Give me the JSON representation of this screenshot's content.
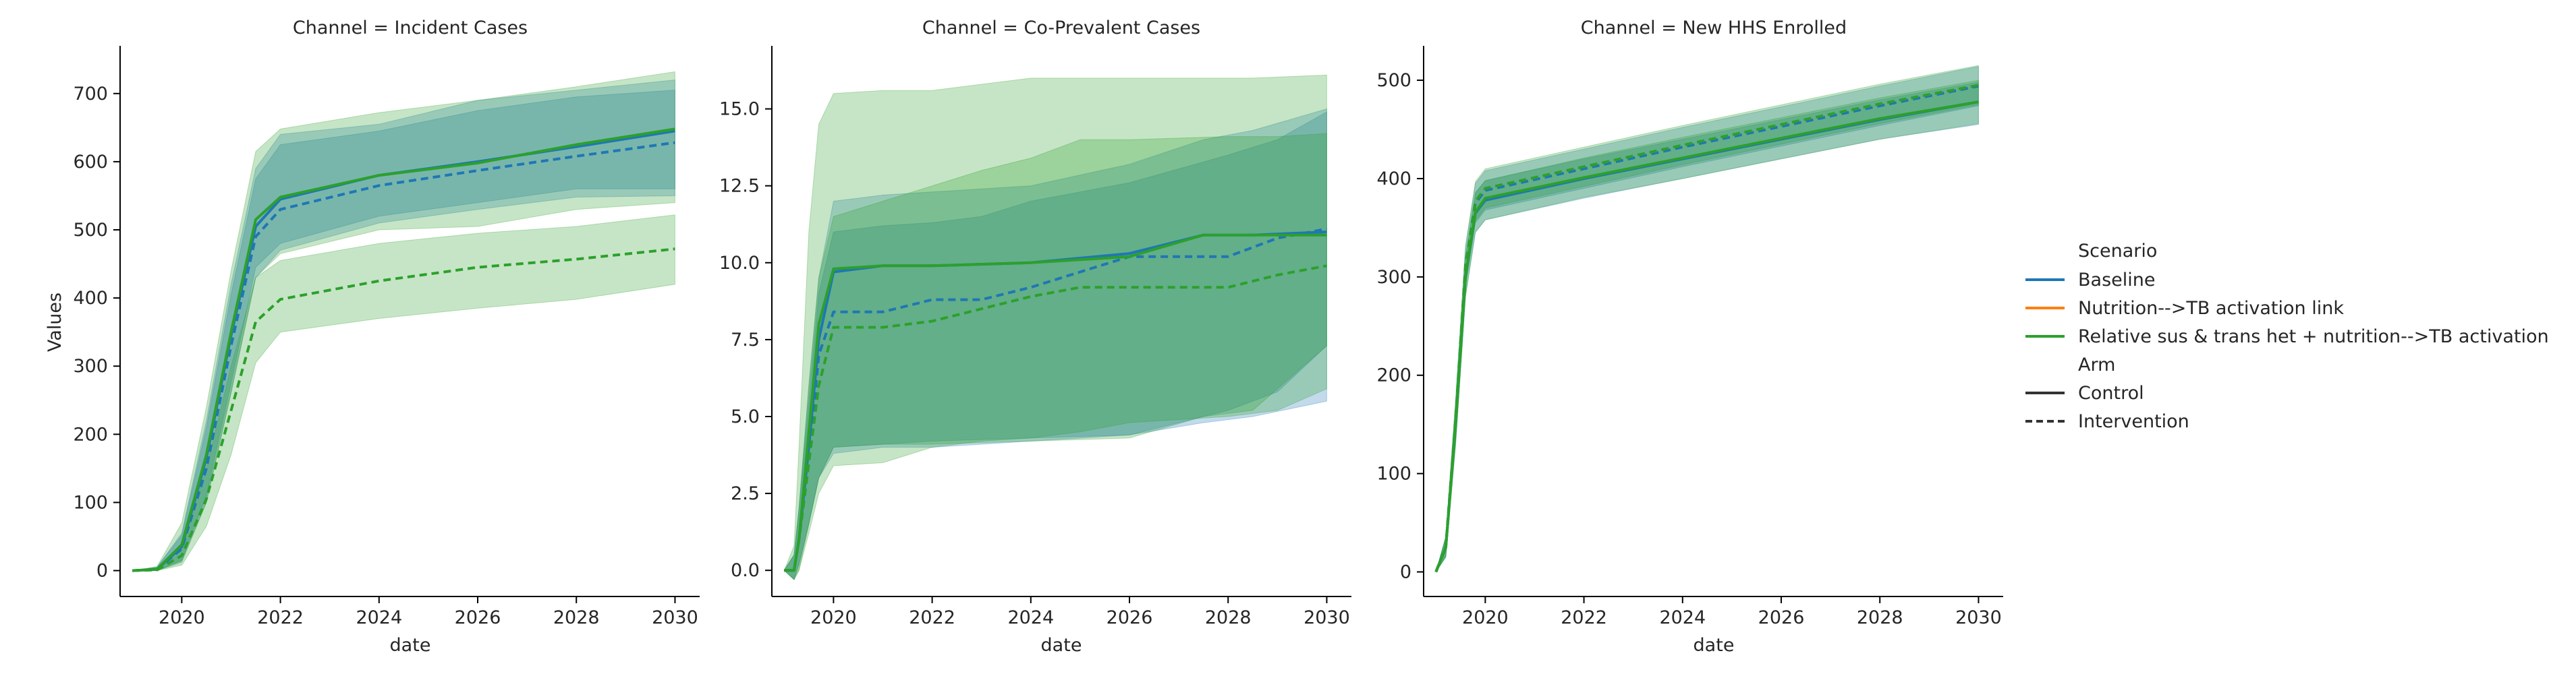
{
  "figure": {
    "legend": {
      "hue_title": "Scenario",
      "style_title": "Arm",
      "hue_entries": [
        {
          "label": "Baseline",
          "color": "#1f77b4"
        },
        {
          "label": "Nutrition-->TB activation link",
          "color": "#ff7f0e"
        },
        {
          "label": "Relative sus & trans het + nutrition-->TB activation",
          "color": "#2ca02c"
        }
      ],
      "style_entries": [
        {
          "label": "Control",
          "dash": "solid",
          "color": "#333333"
        },
        {
          "label": "Intervention",
          "dash": "dashed",
          "color": "#333333"
        }
      ]
    }
  },
  "chart_data": [
    {
      "type": "line",
      "title": "Channel = Incident Cases",
      "xlabel": "date",
      "ylabel": "Values",
      "xlim": [
        2018.75,
        2030.5
      ],
      "ylim": [
        -38,
        770
      ],
      "xticks": [
        2020,
        2022,
        2024,
        2026,
        2028,
        2030
      ],
      "yticks": [
        0,
        100,
        200,
        300,
        400,
        500,
        600,
        700
      ],
      "ytick_labels": [
        "0",
        "100",
        "200",
        "300",
        "400",
        "500",
        "600",
        "700"
      ],
      "grid": false,
      "series": [
        {
          "scenario": "Baseline",
          "arm": "Control",
          "color": "#1f77b4",
          "dash": "solid",
          "x": [
            2019,
            2019.5,
            2020,
            2020.5,
            2021,
            2021.5,
            2022,
            2024,
            2026,
            2028,
            2030
          ],
          "y": [
            0,
            2,
            35,
            165,
            345,
            505,
            545,
            580,
            600,
            622,
            645
          ],
          "lower": [
            0,
            0,
            15,
            110,
            275,
            445,
            480,
            520,
            540,
            560,
            560
          ],
          "upper": [
            0,
            5,
            55,
            220,
            420,
            590,
            640,
            655,
            690,
            705,
            720
          ]
        },
        {
          "scenario": "Baseline",
          "arm": "Intervention",
          "color": "#1f77b4",
          "dash": "dashed",
          "x": [
            2019,
            2019.5,
            2020,
            2020.5,
            2021,
            2021.5,
            2022,
            2024,
            2026,
            2028,
            2030
          ],
          "y": [
            0,
            2,
            32,
            150,
            330,
            490,
            530,
            565,
            587,
            608,
            628
          ],
          "lower": [
            0,
            0,
            14,
            100,
            262,
            430,
            470,
            510,
            530,
            548,
            550
          ],
          "upper": [
            0,
            5,
            52,
            210,
            405,
            575,
            625,
            645,
            675,
            695,
            705
          ]
        },
        {
          "scenario": "Relative sus & trans het + nutrition-->TB activation",
          "arm": "Control",
          "color": "#2ca02c",
          "dash": "solid",
          "x": [
            2019,
            2019.5,
            2020,
            2020.5,
            2021,
            2021.5,
            2022,
            2024,
            2026,
            2028,
            2030
          ],
          "y": [
            0,
            2,
            38,
            170,
            350,
            515,
            548,
            580,
            598,
            625,
            648
          ],
          "lower": [
            0,
            0,
            12,
            100,
            260,
            430,
            465,
            500,
            505,
            530,
            540
          ],
          "upper": [
            0,
            6,
            70,
            240,
            440,
            615,
            648,
            672,
            690,
            710,
            732
          ]
        },
        {
          "scenario": "Relative sus & trans het + nutrition-->TB activation",
          "arm": "Intervention",
          "color": "#2ca02c",
          "dash": "dashed",
          "x": [
            2019,
            2019.5,
            2020,
            2020.5,
            2021,
            2021.5,
            2022,
            2024,
            2026,
            2028,
            2030
          ],
          "y": [
            0,
            1,
            22,
            105,
            235,
            365,
            398,
            425,
            445,
            457,
            472
          ],
          "lower": [
            0,
            0,
            8,
            65,
            170,
            305,
            350,
            370,
            385,
            398,
            420
          ],
          "upper": [
            0,
            3,
            40,
            150,
            300,
            430,
            455,
            480,
            495,
            505,
            522
          ]
        }
      ]
    },
    {
      "type": "line",
      "title": "Channel = Co-Prevalent Cases",
      "xlabel": "date",
      "ylabel": "",
      "xlim": [
        2018.75,
        2030.5
      ],
      "ylim": [
        -0.85,
        17.05
      ],
      "xticks": [
        2020,
        2022,
        2024,
        2026,
        2028,
        2030
      ],
      "yticks": [
        0.0,
        2.5,
        5.0,
        7.5,
        10.0,
        12.5,
        15.0
      ],
      "ytick_labels": [
        "0.0",
        "2.5",
        "5.0",
        "7.5",
        "10.0",
        "12.5",
        "15.0"
      ],
      "grid": false,
      "series": [
        {
          "scenario": "Baseline",
          "arm": "Control",
          "color": "#1f77b4",
          "dash": "solid",
          "x": [
            2019,
            2019.2,
            2019.3,
            2019.5,
            2019.7,
            2020,
            2021,
            2022,
            2024,
            2026,
            2027.5,
            2028.5,
            2030
          ],
          "y": [
            0,
            0,
            1,
            4,
            7.5,
            9.7,
            9.9,
            9.9,
            10,
            10.3,
            10.9,
            10.9,
            11
          ],
          "lower": [
            0,
            -0.3,
            0.2,
            1.5,
            3,
            4,
            4.1,
            4.2,
            4.3,
            4.4,
            4.8,
            5,
            5.5
          ],
          "upper": [
            0,
            0.5,
            2,
            6,
            9.5,
            12,
            12.2,
            12.3,
            12.5,
            13.2,
            14,
            14.3,
            15
          ]
        },
        {
          "scenario": "Baseline",
          "arm": "Intervention",
          "color": "#1f77b4",
          "dash": "dashed",
          "x": [
            2019,
            2019.2,
            2019.3,
            2019.5,
            2019.7,
            2020,
            2021,
            2022,
            2023,
            2024,
            2026,
            2028,
            2029,
            2030
          ],
          "y": [
            0,
            0,
            1,
            3.5,
            7,
            8.4,
            8.4,
            8.8,
            8.8,
            9.2,
            10.2,
            10.2,
            10.8,
            11.1
          ],
          "lower": [
            0,
            -0.3,
            0.2,
            1.5,
            3,
            3.8,
            4,
            4,
            4.1,
            4.2,
            4.4,
            5.2,
            5.8,
            7.3
          ],
          "upper": [
            0,
            0.5,
            2,
            5.5,
            9,
            11,
            11.2,
            11.3,
            11.5,
            12,
            12.6,
            13.5,
            14,
            14.9
          ]
        },
        {
          "scenario": "Relative sus & trans het + nutrition-->TB activation",
          "arm": "Control",
          "color": "#2ca02c",
          "dash": "solid",
          "x": [
            2019,
            2019.2,
            2019.3,
            2019.5,
            2019.7,
            2020,
            2021,
            2022,
            2024,
            2026,
            2027.5,
            2028.5,
            2030
          ],
          "y": [
            0,
            0,
            1,
            4.5,
            8,
            9.8,
            9.9,
            9.9,
            10,
            10.2,
            10.9,
            10.9,
            10.9
          ],
          "lower": [
            0,
            -0.3,
            0,
            1.5,
            3,
            4,
            4.1,
            4.1,
            4.2,
            4.3,
            5,
            5.2,
            7.3
          ],
          "upper": [
            0,
            0.8,
            4,
            11,
            14.5,
            15.5,
            15.6,
            15.6,
            16,
            16,
            16,
            16,
            16.1
          ]
        },
        {
          "scenario": "Relative sus & trans het + nutrition-->TB activation",
          "arm": "Intervention",
          "color": "#2ca02c",
          "dash": "dashed",
          "x": [
            2019,
            2019.2,
            2019.3,
            2019.5,
            2019.7,
            2020,
            2021,
            2022,
            2023,
            2024,
            2025,
            2026,
            2028,
            2029,
            2030
          ],
          "y": [
            0,
            0,
            1,
            3.5,
            6,
            7.9,
            7.9,
            8.1,
            8.5,
            8.9,
            9.2,
            9.2,
            9.2,
            9.6,
            9.9
          ],
          "lower": [
            0,
            -0.3,
            0,
            1.2,
            2.5,
            3.4,
            3.5,
            4,
            4.2,
            4.3,
            4.5,
            4.8,
            5,
            5.2,
            5.9
          ],
          "upper": [
            0,
            0.5,
            2,
            6,
            9.5,
            11.5,
            12,
            12.5,
            13,
            13.4,
            14,
            14,
            14.1,
            14.1,
            14.2
          ]
        }
      ]
    },
    {
      "type": "line",
      "title": "Channel = New HHS Enrolled",
      "xlabel": "date",
      "ylabel": "",
      "xlim": [
        2018.75,
        2030.5
      ],
      "ylim": [
        -25,
        535
      ],
      "xticks": [
        2020,
        2022,
        2024,
        2026,
        2028,
        2030
      ],
      "yticks": [
        0,
        100,
        200,
        300,
        400,
        500
      ],
      "ytick_labels": [
        "0",
        "100",
        "200",
        "300",
        "400",
        "500"
      ],
      "grid": false,
      "series": [
        {
          "scenario": "Baseline",
          "arm": "Control",
          "color": "#1f77b4",
          "dash": "solid",
          "x": [
            2019,
            2019.2,
            2019.4,
            2019.6,
            2019.8,
            2020,
            2022,
            2024,
            2026,
            2028,
            2030
          ],
          "y": [
            0,
            25,
            150,
            300,
            365,
            378,
            400,
            420,
            440,
            460,
            478
          ],
          "lower": [
            0,
            15,
            130,
            280,
            345,
            358,
            380,
            400,
            420,
            440,
            455
          ],
          "upper": [
            0,
            35,
            170,
            320,
            385,
            398,
            420,
            440,
            460,
            480,
            498
          ]
        },
        {
          "scenario": "Baseline",
          "arm": "Intervention",
          "color": "#1f77b4",
          "dash": "dashed",
          "x": [
            2019,
            2019.2,
            2019.4,
            2019.6,
            2019.8,
            2020,
            2022,
            2024,
            2026,
            2028,
            2030
          ],
          "y": [
            0,
            26,
            155,
            310,
            375,
            388,
            410,
            432,
            453,
            474,
            494
          ],
          "lower": [
            0,
            16,
            135,
            290,
            355,
            368,
            390,
            412,
            433,
            454,
            474
          ],
          "upper": [
            0,
            36,
            175,
            330,
            395,
            408,
            430,
            452,
            473,
            494,
            514
          ]
        },
        {
          "scenario": "Relative sus & trans het + nutrition-->TB activation",
          "arm": "Control",
          "color": "#2ca02c",
          "dash": "solid",
          "x": [
            2019,
            2019.2,
            2019.4,
            2019.6,
            2019.8,
            2020,
            2022,
            2024,
            2026,
            2028,
            2030
          ],
          "y": [
            0,
            25,
            150,
            300,
            366,
            380,
            401,
            421,
            441,
            461,
            478
          ],
          "lower": [
            0,
            15,
            130,
            280,
            346,
            358,
            381,
            400,
            420,
            440,
            456
          ],
          "upper": [
            0,
            35,
            170,
            320,
            386,
            398,
            421,
            442,
            462,
            482,
            500
          ]
        },
        {
          "scenario": "Relative sus & trans het + nutrition-->TB activation",
          "arm": "Intervention",
          "color": "#2ca02c",
          "dash": "dashed",
          "x": [
            2019,
            2019.2,
            2019.4,
            2019.6,
            2019.8,
            2020,
            2022,
            2024,
            2026,
            2028,
            2030
          ],
          "y": [
            0,
            26,
            156,
            312,
            377,
            390,
            412,
            434,
            455,
            476,
            495
          ],
          "lower": [
            0,
            16,
            136,
            292,
            357,
            370,
            392,
            414,
            435,
            456,
            475
          ],
          "upper": [
            0,
            36,
            176,
            332,
            397,
            410,
            432,
            454,
            475,
            496,
            515
          ]
        }
      ]
    }
  ]
}
